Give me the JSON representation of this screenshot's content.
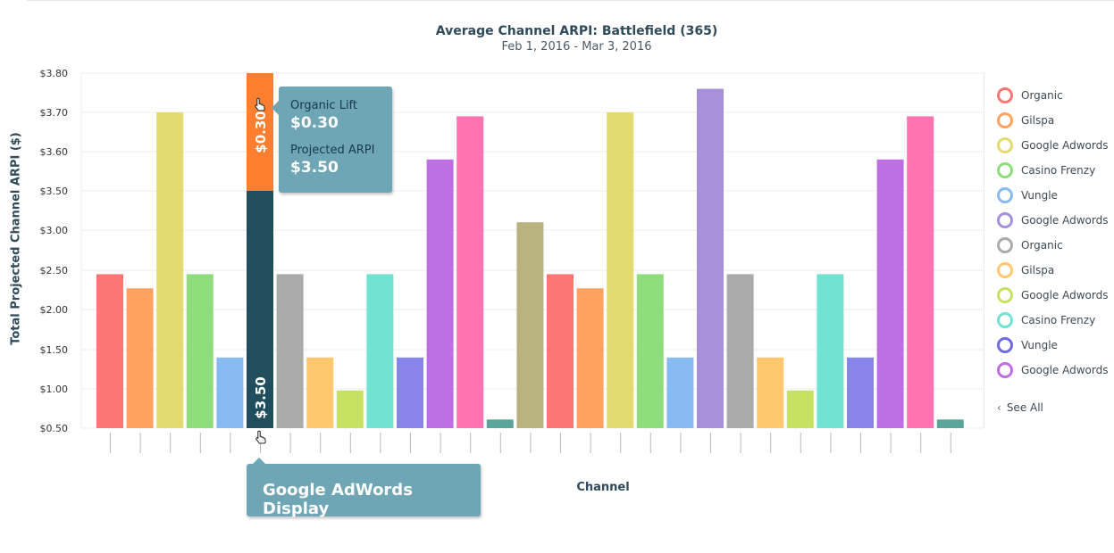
{
  "chart_data": {
    "type": "bar",
    "title": "Average Channel ARPI: Battlefield (365)",
    "subtitle": "Feb 1, 2016 - Mar 3, 2016",
    "ylabel": "Total Projected Channel ARPI ($)",
    "xlabel": "Channel",
    "y_ticks": [
      "$0.50",
      "$1.00",
      "$1.50",
      "$2.00",
      "$2.50",
      "$3.00",
      "$3.50",
      "$3.60",
      "$3.70",
      "$3.80"
    ],
    "bars": [
      {
        "value": 2.45,
        "color": "#ff7474"
      },
      {
        "value": 2.27,
        "color": "#ffa260"
      },
      {
        "value": 3.7,
        "color": "#e3da72"
      },
      {
        "value": 2.45,
        "color": "#8fdc7c"
      },
      {
        "value": 1.4,
        "color": "#88baf2"
      },
      {
        "value": 3.5,
        "color": "#214e5d",
        "stack": {
          "value": 0.3,
          "color": "#fd7e2e"
        },
        "base_label": "$3.50",
        "stack_label": "$0.30"
      },
      {
        "value": 2.45,
        "color": "#aaaaaa"
      },
      {
        "value": 1.4,
        "color": "#ffc870"
      },
      {
        "value": 0.98,
        "color": "#c5e261"
      },
      {
        "value": 2.45,
        "color": "#72e3d2"
      },
      {
        "value": 1.4,
        "color": "#8785e6"
      },
      {
        "value": 3.58,
        "color": "#bd6ee4"
      },
      {
        "value": 3.69,
        "color": "#ff73b1"
      },
      {
        "value": 0.61,
        "color": "#5aa69a"
      },
      {
        "value": 3.1,
        "color": "#b8b37e"
      },
      {
        "value": 2.45,
        "color": "#ff7474"
      },
      {
        "value": 2.27,
        "color": "#ffa260"
      },
      {
        "value": 3.7,
        "color": "#e3da72"
      },
      {
        "value": 2.45,
        "color": "#8fdc7c"
      },
      {
        "value": 1.4,
        "color": "#88baf2"
      },
      {
        "value": 3.76,
        "color": "#a690d8"
      },
      {
        "value": 2.45,
        "color": "#aaaaaa"
      },
      {
        "value": 1.4,
        "color": "#ffc870"
      },
      {
        "value": 0.98,
        "color": "#c5e261"
      },
      {
        "value": 2.45,
        "color": "#72e3d2"
      },
      {
        "value": 1.4,
        "color": "#8785e6"
      },
      {
        "value": 3.58,
        "color": "#bd6ee4"
      },
      {
        "value": 3.69,
        "color": "#ff73b1"
      },
      {
        "value": 0.61,
        "color": "#5aa69a"
      }
    ],
    "grid": true,
    "legend_position": "right"
  },
  "legend": {
    "items": [
      {
        "label": "Organic",
        "color": "#ff7474"
      },
      {
        "label": "Gilspa",
        "color": "#ffa260"
      },
      {
        "label": "Google Adwords",
        "color": "#e3da72"
      },
      {
        "label": "Casino Frenzy",
        "color": "#8fdc7c"
      },
      {
        "label": "Vungle",
        "color": "#88baf2"
      },
      {
        "label": "Google Adwords",
        "color": "#a690d8"
      },
      {
        "label": "Organic",
        "color": "#aaaaaa"
      },
      {
        "label": "Gilspa",
        "color": "#ffc870"
      },
      {
        "label": "Google Adwords",
        "color": "#c5e261"
      },
      {
        "label": "Casino Frenzy",
        "color": "#72e3d2"
      },
      {
        "label": "Vungle",
        "color": "#6f6ae0"
      },
      {
        "label": "Google Adwords",
        "color": "#bd6ee4"
      }
    ],
    "see_all": "See All"
  },
  "tooltip": {
    "lift_label": "Organic Lift",
    "lift_value": "$0.30",
    "arpi_label": "Projected ARPI",
    "arpi_value": "$3.50"
  },
  "axis_tooltip": {
    "label": "Google AdWords Display"
  },
  "cursor_icon": "hand-pointer-icon"
}
